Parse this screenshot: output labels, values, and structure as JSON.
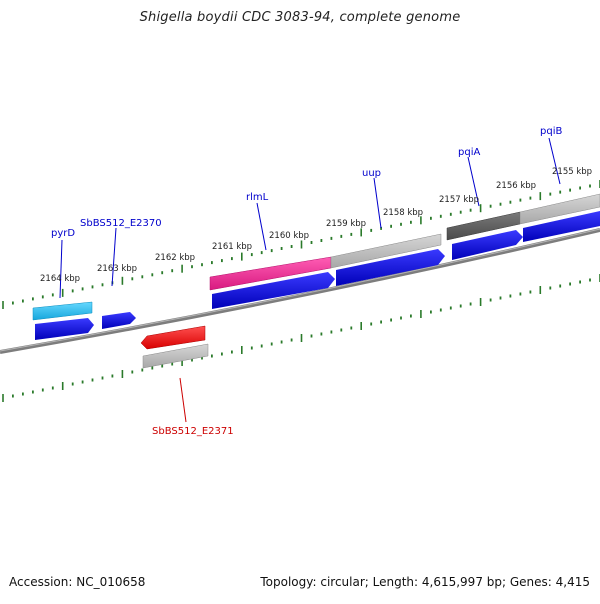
{
  "title": "Shigella boydii CDC 3083-94, complete genome",
  "footer": {
    "accession": "Accession: NC_010658",
    "summary": "Topology: circular; Length: 4,615,997 bp; Genes: 4,415"
  },
  "ruler_labels": [
    "2164 kbp",
    "2163 kbp",
    "2162 kbp",
    "2161 kbp",
    "2160 kbp",
    "2159 kbp",
    "2158 kbp",
    "2157 kbp",
    "2156 kbp",
    "2155 kbp"
  ],
  "gene_labels": [
    {
      "name": "pyrD",
      "color": "#0000cc"
    },
    {
      "name": "SbBS512_E2370",
      "color": "#0000cc"
    },
    {
      "name": "rlmL",
      "color": "#0000cc"
    },
    {
      "name": "uup",
      "color": "#0000cc"
    },
    {
      "name": "pqiA",
      "color": "#0000cc"
    },
    {
      "name": "pqiB",
      "color": "#0000cc"
    },
    {
      "name": "SbBS512_E2371",
      "color": "#cc0000"
    }
  ],
  "colors": {
    "backbone": "#808080",
    "ticks": "#2a7a2a",
    "cds": "#0000dd",
    "gene_magenta": "#e8238f",
    "gene_cyan": "#22b5e8",
    "gene_red": "#ee1111",
    "gene_gray": "#b8b8b8",
    "gene_darkgray": "#606060"
  }
}
